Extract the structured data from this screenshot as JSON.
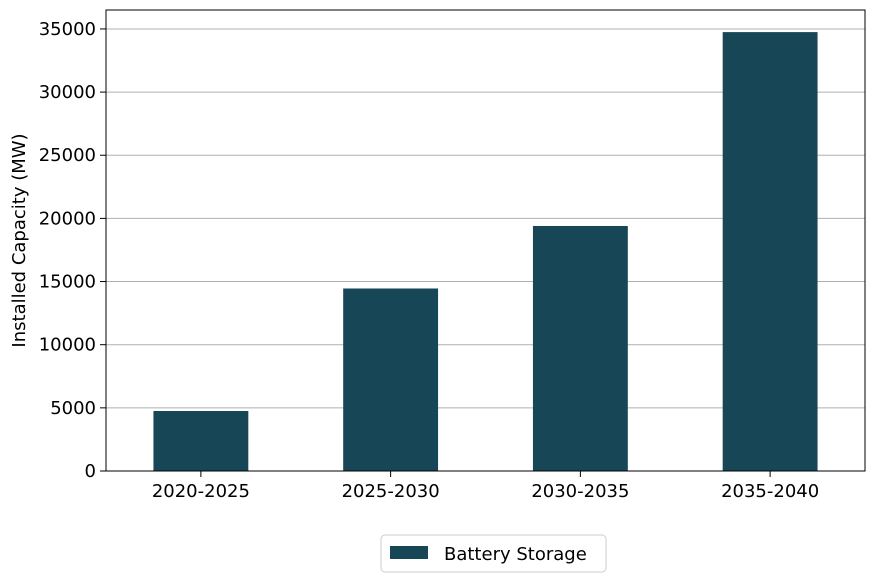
{
  "chart_data": {
    "type": "bar",
    "categories": [
      "2020-2025",
      "2025-2030",
      "2030-2035",
      "2035-2040"
    ],
    "series": [
      {
        "name": "Battery Storage",
        "values": [
          4750,
          14450,
          19400,
          34750
        ],
        "color": "#174756"
      }
    ],
    "title": "",
    "xlabel": "",
    "ylabel": "Installed Capacity (MW)",
    "ylim": [
      0,
      36500
    ],
    "yticks": [
      0,
      5000,
      10000,
      15000,
      20000,
      25000,
      30000,
      35000
    ],
    "grid": {
      "y": true,
      "x": false,
      "color": "#b0b0b0"
    },
    "legend": {
      "position": "bottom-center",
      "entries": [
        "Battery Storage"
      ]
    }
  }
}
